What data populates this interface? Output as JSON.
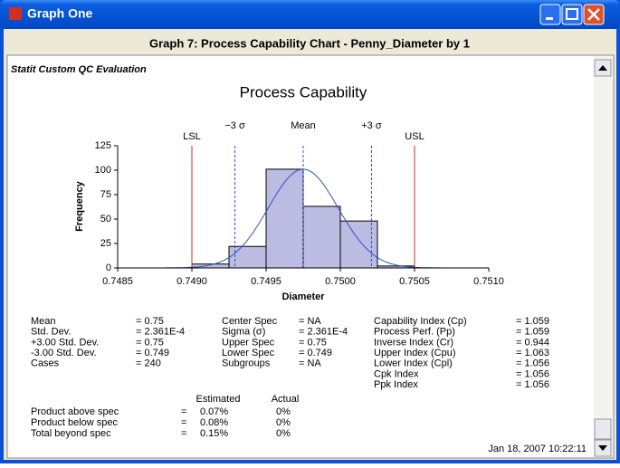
{
  "window": {
    "title": "Graph One"
  },
  "header": "Graph 7:  Process Capability Chart - Penny_Diameter by 1",
  "report_title": "Statit Custom QC Evaluation",
  "chart_data": {
    "type": "histogram",
    "title": "Process Capability",
    "xlabel": "Diameter",
    "ylabel": "Frequency",
    "bins": [
      0.749,
      0.74925,
      0.7495,
      0.74975,
      0.75,
      0.75025,
      0.7505
    ],
    "values": [
      4,
      22,
      101,
      63,
      48,
      2
    ],
    "color": "#bcbce2",
    "xlim": [
      0.7485,
      0.751
    ],
    "xticks": [
      0.7485,
      {
        "value": 0.749,
        "label": "0.7490"
      },
      0.7495,
      {
        "value": 0.75,
        "label": "0.7500"
      },
      0.7505,
      {
        "value": 0.751,
        "label": "0.7510"
      }
    ],
    "ylim": [
      0,
      125
    ],
    "yticks": [
      0,
      25,
      50,
      75,
      100,
      125
    ],
    "reference_lines": [
      {
        "value": 0.749,
        "label": "LSL",
        "color": "#e02020",
        "dashed": false
      },
      {
        "value": 0.74929,
        "label": "−3 σ",
        "color": "#3050c0",
        "dashed": true
      },
      {
        "value": 0.74975,
        "label": "Mean",
        "color": "#3050c0",
        "dashed": true
      },
      {
        "value": 0.75021,
        "label": "+3 σ",
        "color": "#3050c0",
        "dashed": true
      },
      {
        "value": 0.7505,
        "label": "USL",
        "color": "#e02020",
        "dashed": false
      }
    ],
    "curve": {
      "mean": 0.74975,
      "sigma": 0.000236,
      "peak": 101,
      "color": "#3050c0"
    }
  },
  "stats": [
    [
      [
        "Mean",
        "= 0.75"
      ],
      [
        "Std. Dev.",
        "= 2.361E-4"
      ],
      [
        "+3.00 Std. Dev.",
        "= 0.75"
      ],
      [
        "-3.00 Std. Dev.",
        "= 0.749"
      ],
      [
        "Cases",
        "= 240"
      ]
    ],
    [
      [
        "Center Spec",
        "= NA"
      ],
      [
        "Sigma    (σ)",
        "= 2.361E-4"
      ],
      [
        "Upper Spec",
        "= 0.75"
      ],
      [
        "Lower Spec",
        "= 0.749"
      ],
      [
        "Subgroups",
        "= NA"
      ]
    ],
    [
      [
        "Capability Index (Cp)",
        "= 1.059"
      ],
      [
        "Process Perf. (Pp)",
        "= 1.059"
      ],
      [
        "Inverse Index (Cr)",
        "= 0.944"
      ],
      [
        "Upper Index (Cpu)",
        "= 1.063"
      ],
      [
        "Lower Index (Cpl)",
        "= 1.056"
      ],
      [
        "Cpk Index",
        "= 1.056"
      ],
      [
        "Ppk Index",
        "= 1.056"
      ]
    ]
  ],
  "estimates": {
    "headers": [
      "Estimated",
      "Actual"
    ],
    "rows": [
      [
        "Product above spec",
        "=",
        "0.07%",
        "0%"
      ],
      [
        "Product below spec",
        "=",
        "0.08%",
        "0%"
      ],
      [
        "Total beyond spec",
        "=",
        "0.15%",
        "0%"
      ]
    ]
  },
  "timestamp": "Jan 18, 2007 10:22:11"
}
